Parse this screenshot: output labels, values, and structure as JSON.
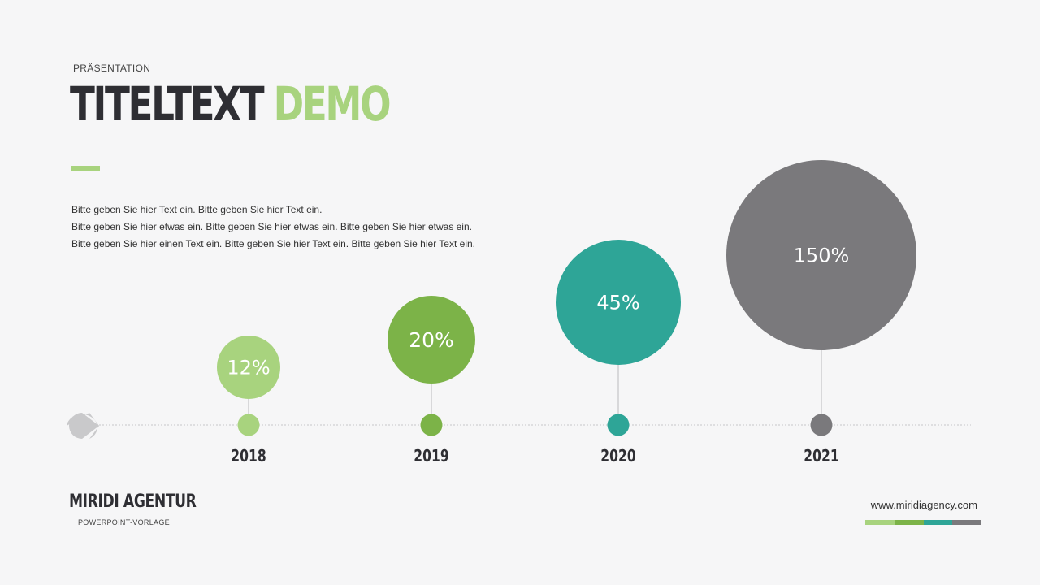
{
  "header": {
    "kicker": "PRÄSENTATION",
    "title_part1": "TITELTEXT",
    "title_part2": "DEMO"
  },
  "body": {
    "lines": [
      "Bitte geben Sie hier Text ein. Bitte geben Sie hier Text ein.",
      "Bitte geben Sie hier etwas ein. Bitte geben Sie hier etwas ein. Bitte geben Sie hier etwas ein.",
      "Bitte geben Sie hier einen Text ein. Bitte geben Sie hier Text ein. Bitte geben Sie hier Text ein."
    ]
  },
  "footer": {
    "brand": "MIRIDI AGENTUR",
    "brand_sub": "POWERPOINT-VORLAGE",
    "url": "www.miridiagency.com",
    "strip_colors": [
      "#a8d37e",
      "#7cb348",
      "#2ea597",
      "#7a797c"
    ]
  },
  "colors": {
    "accent_light": "#a8d37e",
    "accent_green": "#7cb348",
    "accent_teal": "#2ea597",
    "accent_gray": "#7a797c",
    "title_dark": "#2e2e33"
  },
  "chart_data": {
    "type": "bubble-timeline",
    "categories": [
      "2018",
      "2019",
      "2020",
      "2021"
    ],
    "values": [
      12,
      20,
      45,
      150
    ],
    "labels": [
      "12%",
      "20%",
      "45%",
      "150%"
    ],
    "colors": [
      "#a8d37e",
      "#7cb348",
      "#2ea597",
      "#7a797c"
    ],
    "title": "",
    "xlabel": "",
    "ylabel": ""
  }
}
